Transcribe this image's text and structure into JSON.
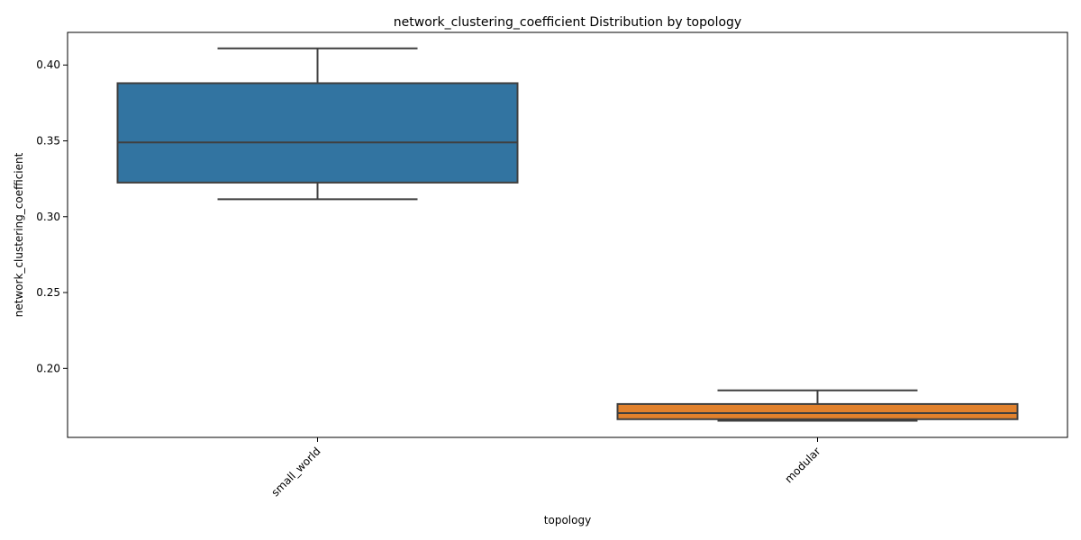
{
  "chart_data": {
    "type": "box",
    "title": "network_clustering_coefficient Distribution by topology",
    "xlabel": "topology",
    "ylabel": "network_clustering_coefficient",
    "categories": [
      "small_world",
      "modular"
    ],
    "yticks": [
      "0.20",
      "0.25",
      "0.30",
      "0.35",
      "0.40"
    ],
    "ylim": [
      0.1545,
      0.4215
    ],
    "grid": false,
    "boxes": [
      {
        "category": "small_world",
        "whisker_low": 0.3115,
        "q1": 0.3225,
        "median": 0.349,
        "q3": 0.388,
        "whisker_high": 0.411,
        "color": "#3274a1"
      },
      {
        "category": "modular",
        "whisker_low": 0.1655,
        "q1": 0.1665,
        "median": 0.1705,
        "q3": 0.1765,
        "whisker_high": 0.1855,
        "color": "#e1812c"
      }
    ],
    "edge_color": "#3f3f3f"
  }
}
